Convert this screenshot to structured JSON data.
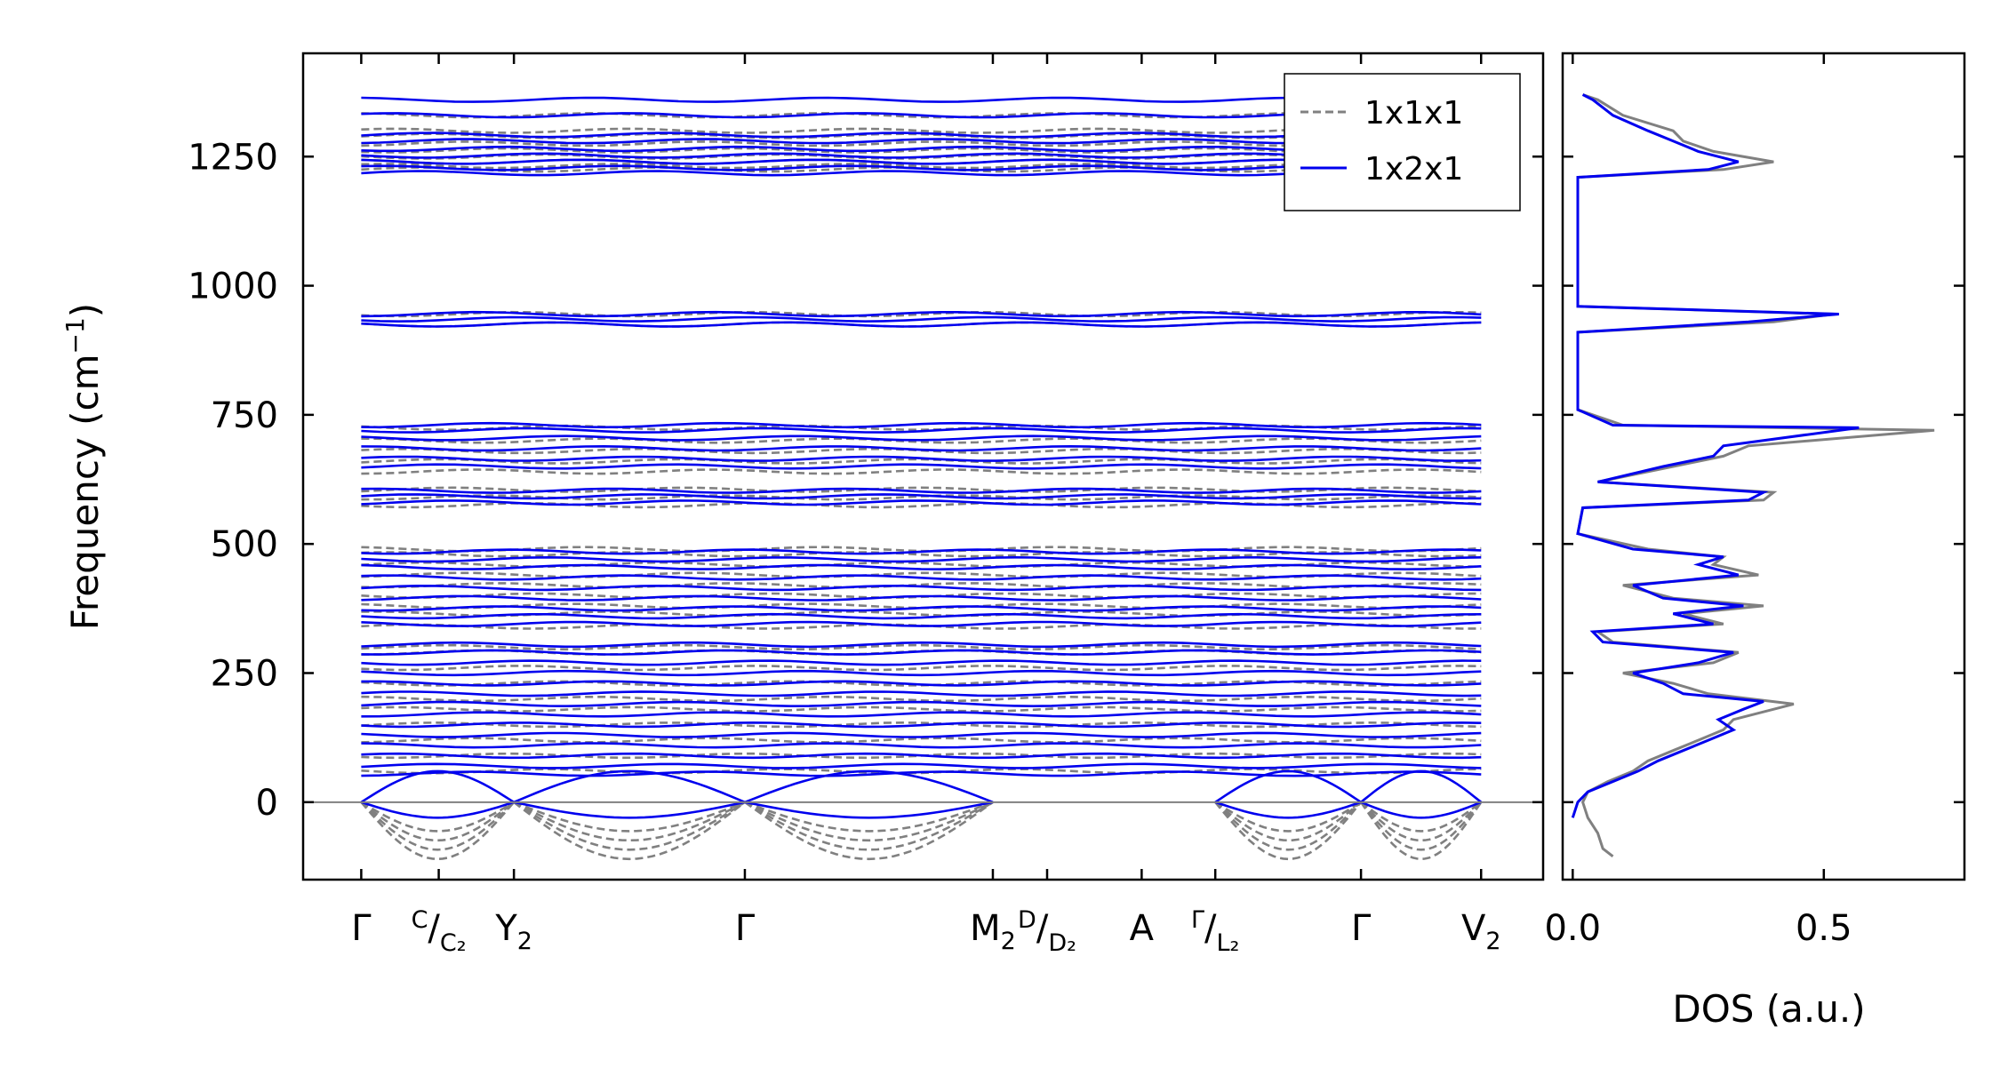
{
  "chart_data": [
    {
      "type": "line",
      "name": "phonon-band-structure",
      "ylabel": "Frequency (cm",
      "ylabel_exponent": "−1",
      "ylabel_close": ")",
      "ylim": [
        -150,
        1450
      ],
      "yticks": [
        0,
        250,
        500,
        750,
        1000,
        1250
      ],
      "ytick_labels": [
        "0",
        "250",
        "500",
        "750",
        "1000",
        "1250"
      ],
      "xlim": [
        0,
        1600
      ],
      "path_points": [
        {
          "x": 75,
          "label": "Γ",
          "sup": "",
          "sub": ""
        },
        {
          "x": 175,
          "label": "",
          "sup": "C",
          "sub": "C₂",
          "divider": "/"
        },
        {
          "x": 272,
          "label": "Y",
          "sup": "",
          "sub": "2"
        },
        {
          "x": 570,
          "label": "Γ",
          "sup": "",
          "sub": ""
        },
        {
          "x": 890,
          "label": "M",
          "sup": "",
          "sub": "2"
        },
        {
          "x": 960,
          "label": "",
          "sup": "D",
          "sub": "D₂",
          "divider": "/"
        },
        {
          "x": 1082,
          "label": "A",
          "sup": "",
          "sub": ""
        },
        {
          "x": 1177,
          "label": "",
          "sup": "Γ",
          "sub": "L₂",
          "divider": "/"
        },
        {
          "x": 1365,
          "label": "Γ",
          "sup": "",
          "sub": ""
        },
        {
          "x": 1520,
          "label": "V",
          "sup": "",
          "sub": "2"
        }
      ],
      "segment_breaks": [
        890,
        1082,
        1177
      ],
      "zero_line": 0,
      "series": [
        {
          "name": "1x1x1",
          "color": "#808080",
          "style": "dashed",
          "flat_bands": [
            1225,
            1232,
            1240,
            1250,
            1262,
            1275,
            1290,
            1300,
            1330,
            925,
            945,
            640,
            660,
            680,
            700,
            725,
            575,
            590,
            605,
            340,
            365,
            380,
            400,
            420,
            440,
            460,
            480,
            490,
            60,
            90,
            120,
            150,
            180,
            200,
            230,
            260,
            290,
            300
          ],
          "negative_min": -110
        },
        {
          "name": "1x2x1",
          "color": "#0000ee",
          "style": "solid",
          "flat_bands": [
            1218,
            1228,
            1240,
            1252,
            1265,
            1280,
            1292,
            1330,
            1360,
            925,
            935,
            945,
            650,
            665,
            685,
            705,
            720,
            730,
            580,
            592,
            603,
            345,
            360,
            375,
            395,
            415,
            435,
            455,
            470,
            485,
            55,
            70,
            90,
            110,
            130,
            150,
            170,
            190,
            210,
            230,
            250,
            270,
            290,
            305
          ],
          "negative_min": -30
        }
      ],
      "legend": {
        "position": "top-right",
        "entries": [
          "1x1x1",
          "1x2x1"
        ]
      }
    },
    {
      "type": "line",
      "name": "density-of-states",
      "xlabel": "DOS (a.u.)",
      "xlim": [
        -0.02,
        0.78
      ],
      "xticks": [
        0.0,
        0.5
      ],
      "xtick_labels": [
        "0.0",
        "0.5"
      ],
      "ylim": [
        -150,
        1450
      ],
      "series": [
        {
          "name": "1x1x1",
          "color": "#808080",
          "points": [
            [
              0.08,
              -105
            ],
            [
              0.06,
              -90
            ],
            [
              0.05,
              -60
            ],
            [
              0.03,
              -30
            ],
            [
              0.02,
              0
            ],
            [
              0.03,
              20
            ],
            [
              0.07,
              40
            ],
            [
              0.12,
              60
            ],
            [
              0.15,
              80
            ],
            [
              0.2,
              100
            ],
            [
              0.25,
              120
            ],
            [
              0.3,
              140
            ],
            [
              0.32,
              160
            ],
            [
              0.44,
              190
            ],
            [
              0.27,
              210
            ],
            [
              0.2,
              230
            ],
            [
              0.1,
              250
            ],
            [
              0.28,
              270
            ],
            [
              0.33,
              290
            ],
            [
              0.08,
              310
            ],
            [
              0.05,
              330
            ],
            [
              0.3,
              345
            ],
            [
              0.22,
              365
            ],
            [
              0.38,
              380
            ],
            [
              0.2,
              395
            ],
            [
              0.1,
              420
            ],
            [
              0.37,
              440
            ],
            [
              0.28,
              460
            ],
            [
              0.3,
              475
            ],
            [
              0.15,
              490
            ],
            [
              0.01,
              520
            ],
            [
              0.02,
              570
            ],
            [
              0.38,
              585
            ],
            [
              0.4,
              600
            ],
            [
              0.05,
              620
            ],
            [
              0.2,
              650
            ],
            [
              0.3,
              670
            ],
            [
              0.35,
              690
            ],
            [
              0.72,
              720
            ],
            [
              0.1,
              730
            ],
            [
              0.01,
              760
            ],
            [
              0.01,
              910
            ],
            [
              0.4,
              930
            ],
            [
              0.52,
              945
            ],
            [
              0.01,
              960
            ],
            [
              0.01,
              1210
            ],
            [
              0.3,
              1225
            ],
            [
              0.4,
              1240
            ],
            [
              0.28,
              1260
            ],
            [
              0.22,
              1280
            ],
            [
              0.2,
              1300
            ],
            [
              0.1,
              1330
            ],
            [
              0.05,
              1360
            ],
            [
              0.02,
              1370
            ]
          ]
        },
        {
          "name": "1x2x1",
          "color": "#0000ee",
          "points": [
            [
              0.0,
              -30
            ],
            [
              0.01,
              0
            ],
            [
              0.03,
              20
            ],
            [
              0.08,
              40
            ],
            [
              0.13,
              60
            ],
            [
              0.17,
              80
            ],
            [
              0.22,
              100
            ],
            [
              0.27,
              120
            ],
            [
              0.32,
              140
            ],
            [
              0.29,
              160
            ],
            [
              0.34,
              180
            ],
            [
              0.38,
              195
            ],
            [
              0.22,
              210
            ],
            [
              0.18,
              230
            ],
            [
              0.12,
              250
            ],
            [
              0.25,
              270
            ],
            [
              0.32,
              290
            ],
            [
              0.06,
              310
            ],
            [
              0.04,
              330
            ],
            [
              0.28,
              345
            ],
            [
              0.2,
              365
            ],
            [
              0.34,
              380
            ],
            [
              0.18,
              395
            ],
            [
              0.12,
              420
            ],
            [
              0.33,
              440
            ],
            [
              0.25,
              460
            ],
            [
              0.3,
              475
            ],
            [
              0.12,
              490
            ],
            [
              0.01,
              520
            ],
            [
              0.02,
              570
            ],
            [
              0.35,
              585
            ],
            [
              0.38,
              600
            ],
            [
              0.05,
              620
            ],
            [
              0.18,
              650
            ],
            [
              0.28,
              670
            ],
            [
              0.3,
              690
            ],
            [
              0.57,
              725
            ],
            [
              0.08,
              730
            ],
            [
              0.01,
              760
            ],
            [
              0.01,
              910
            ],
            [
              0.35,
              930
            ],
            [
              0.53,
              945
            ],
            [
              0.01,
              960
            ],
            [
              0.01,
              1210
            ],
            [
              0.27,
              1225
            ],
            [
              0.33,
              1240
            ],
            [
              0.25,
              1260
            ],
            [
              0.2,
              1280
            ],
            [
              0.15,
              1300
            ],
            [
              0.08,
              1330
            ],
            [
              0.04,
              1360
            ],
            [
              0.02,
              1370
            ]
          ]
        }
      ]
    }
  ]
}
